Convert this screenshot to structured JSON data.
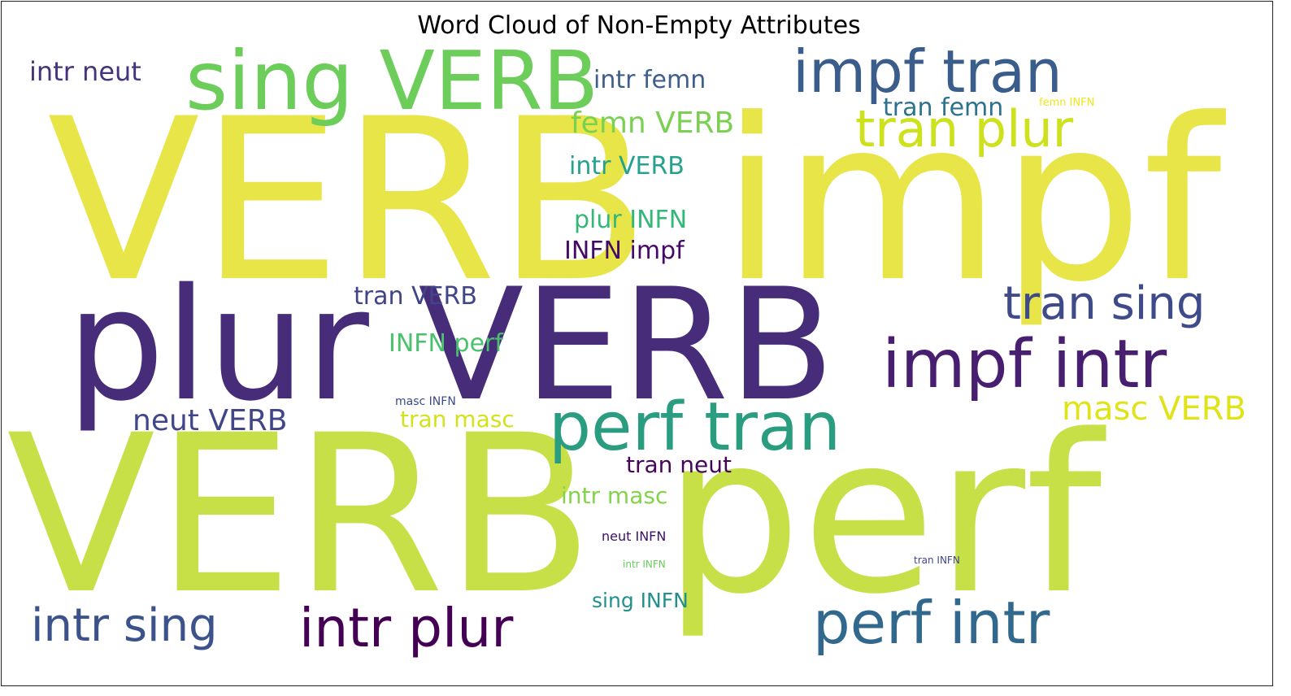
{
  "chart_data": {
    "type": "wordcloud",
    "title": "Word Cloud of Non-Empty Attributes",
    "background": "#ffffff",
    "colormap": "viridis",
    "words": [
      {
        "text": "VERB impf",
        "rank": 1,
        "color": "#e8e549"
      },
      {
        "text": "VERB perf",
        "rank": 2,
        "color": "#c8e048"
      },
      {
        "text": "plur VERB",
        "rank": 3,
        "color": "#472c7a"
      },
      {
        "text": "sing VERB",
        "rank": 4,
        "color": "#6ccd5a"
      },
      {
        "text": "impf intr",
        "rank": 5,
        "color": "#481f70"
      },
      {
        "text": "perf tran",
        "rank": 6,
        "color": "#2a9d80"
      },
      {
        "text": "impf tran",
        "rank": 7,
        "color": "#3a5d8b"
      },
      {
        "text": "perf intr",
        "rank": 8,
        "color": "#31688e"
      },
      {
        "text": "intr plur",
        "rank": 9,
        "color": "#440154"
      },
      {
        "text": "tran plur",
        "rank": 10,
        "color": "#cde11d"
      },
      {
        "text": "tran sing",
        "rank": 11,
        "color": "#3e4a89"
      },
      {
        "text": "intr sing",
        "rank": 12,
        "color": "#3b528b"
      },
      {
        "text": "masc VERB",
        "rank": 13,
        "color": "#dfe318"
      },
      {
        "text": "neut VERB",
        "rank": 14,
        "color": "#404688"
      },
      {
        "text": "femn VERB",
        "rank": 15,
        "color": "#7ad151"
      },
      {
        "text": "intr neut",
        "rank": 16,
        "color": "#46337e"
      },
      {
        "text": "intr femn",
        "rank": 17,
        "color": "#3f5e8c"
      },
      {
        "text": "tran femn",
        "rank": 18,
        "color": "#2c728e"
      },
      {
        "text": "intr VERB",
        "rank": 19,
        "color": "#25a18e"
      },
      {
        "text": "plur INFN",
        "rank": 20,
        "color": "#35b779"
      },
      {
        "text": "INFN impf",
        "rank": 21,
        "color": "#440a68"
      },
      {
        "text": "tran VERB",
        "rank": 22,
        "color": "#414487"
      },
      {
        "text": "INFN perf",
        "rank": 23,
        "color": "#4ac16d"
      },
      {
        "text": "tran masc",
        "rank": 24,
        "color": "#d2e21b"
      },
      {
        "text": "tran neut",
        "rank": 25,
        "color": "#450559"
      },
      {
        "text": "intr masc",
        "rank": 26,
        "color": "#84d44b"
      },
      {
        "text": "sing INFN",
        "rank": 27,
        "color": "#21908d"
      },
      {
        "text": "neut INFN",
        "rank": 28,
        "color": "#3b0f70"
      },
      {
        "text": "masc INFN",
        "rank": 29,
        "color": "#3e4989"
      },
      {
        "text": "intr INFN",
        "rank": 30,
        "color": "#67cc5c"
      },
      {
        "text": "tran INFN",
        "rank": 31,
        "color": "#3f4788"
      },
      {
        "text": "femn INFN",
        "rank": 32,
        "color": "#f1e51d"
      }
    ]
  }
}
